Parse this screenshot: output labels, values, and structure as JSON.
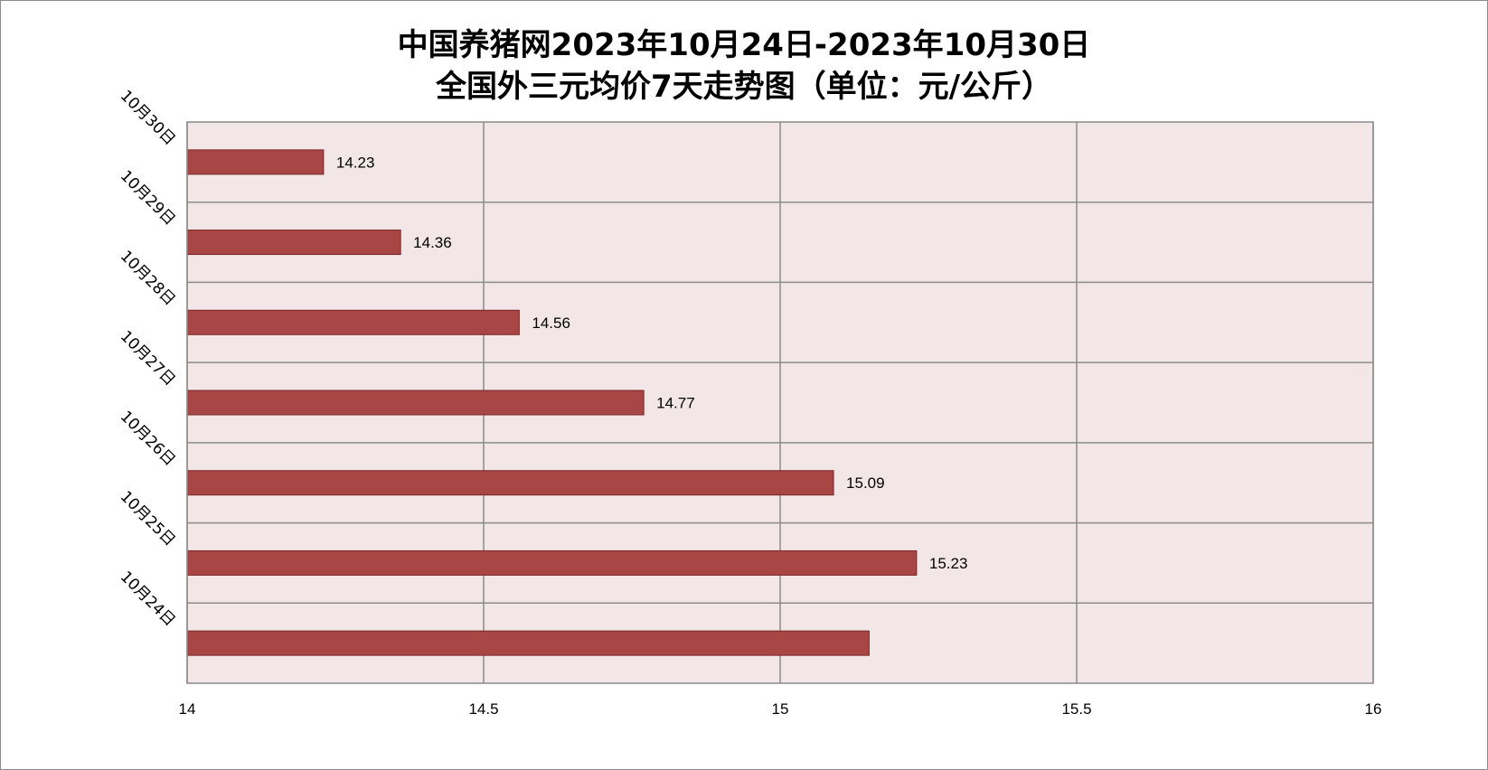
{
  "title": {
    "line1": "中国养猪网2023年10月24日-2023年10月30日",
    "line2": "全国外三元均价7天走势图（单位：元/公斤）"
  },
  "colors": {
    "bar_fill": "#a84545",
    "bar_stroke": "#7a2626",
    "plot_background": "#f2e6e6",
    "gridline": "#8c8c8c"
  },
  "chart_data": {
    "type": "bar",
    "orientation": "horizontal",
    "title": "中国养猪网2023年10月24日-2023年10月30日 全国外三元均价7天走势图（单位：元/公斤）",
    "categories": [
      "10月30日",
      "10月29日",
      "10月28日",
      "10月27日",
      "10月26日",
      "10月25日",
      "10月24日"
    ],
    "values": [
      14.23,
      14.36,
      14.56,
      14.77,
      15.09,
      15.23,
      15.15
    ],
    "data_labels": [
      "14.23",
      "14.36",
      "14.56",
      "14.77",
      "15.09",
      "15.23",
      ""
    ],
    "xlim": [
      14,
      16
    ],
    "x_ticks": [
      14,
      14.5,
      15,
      15.5,
      16
    ],
    "x_tick_labels": [
      "14",
      "14.5",
      "15",
      "15.5",
      "16"
    ],
    "grid": true,
    "legend": "none"
  }
}
